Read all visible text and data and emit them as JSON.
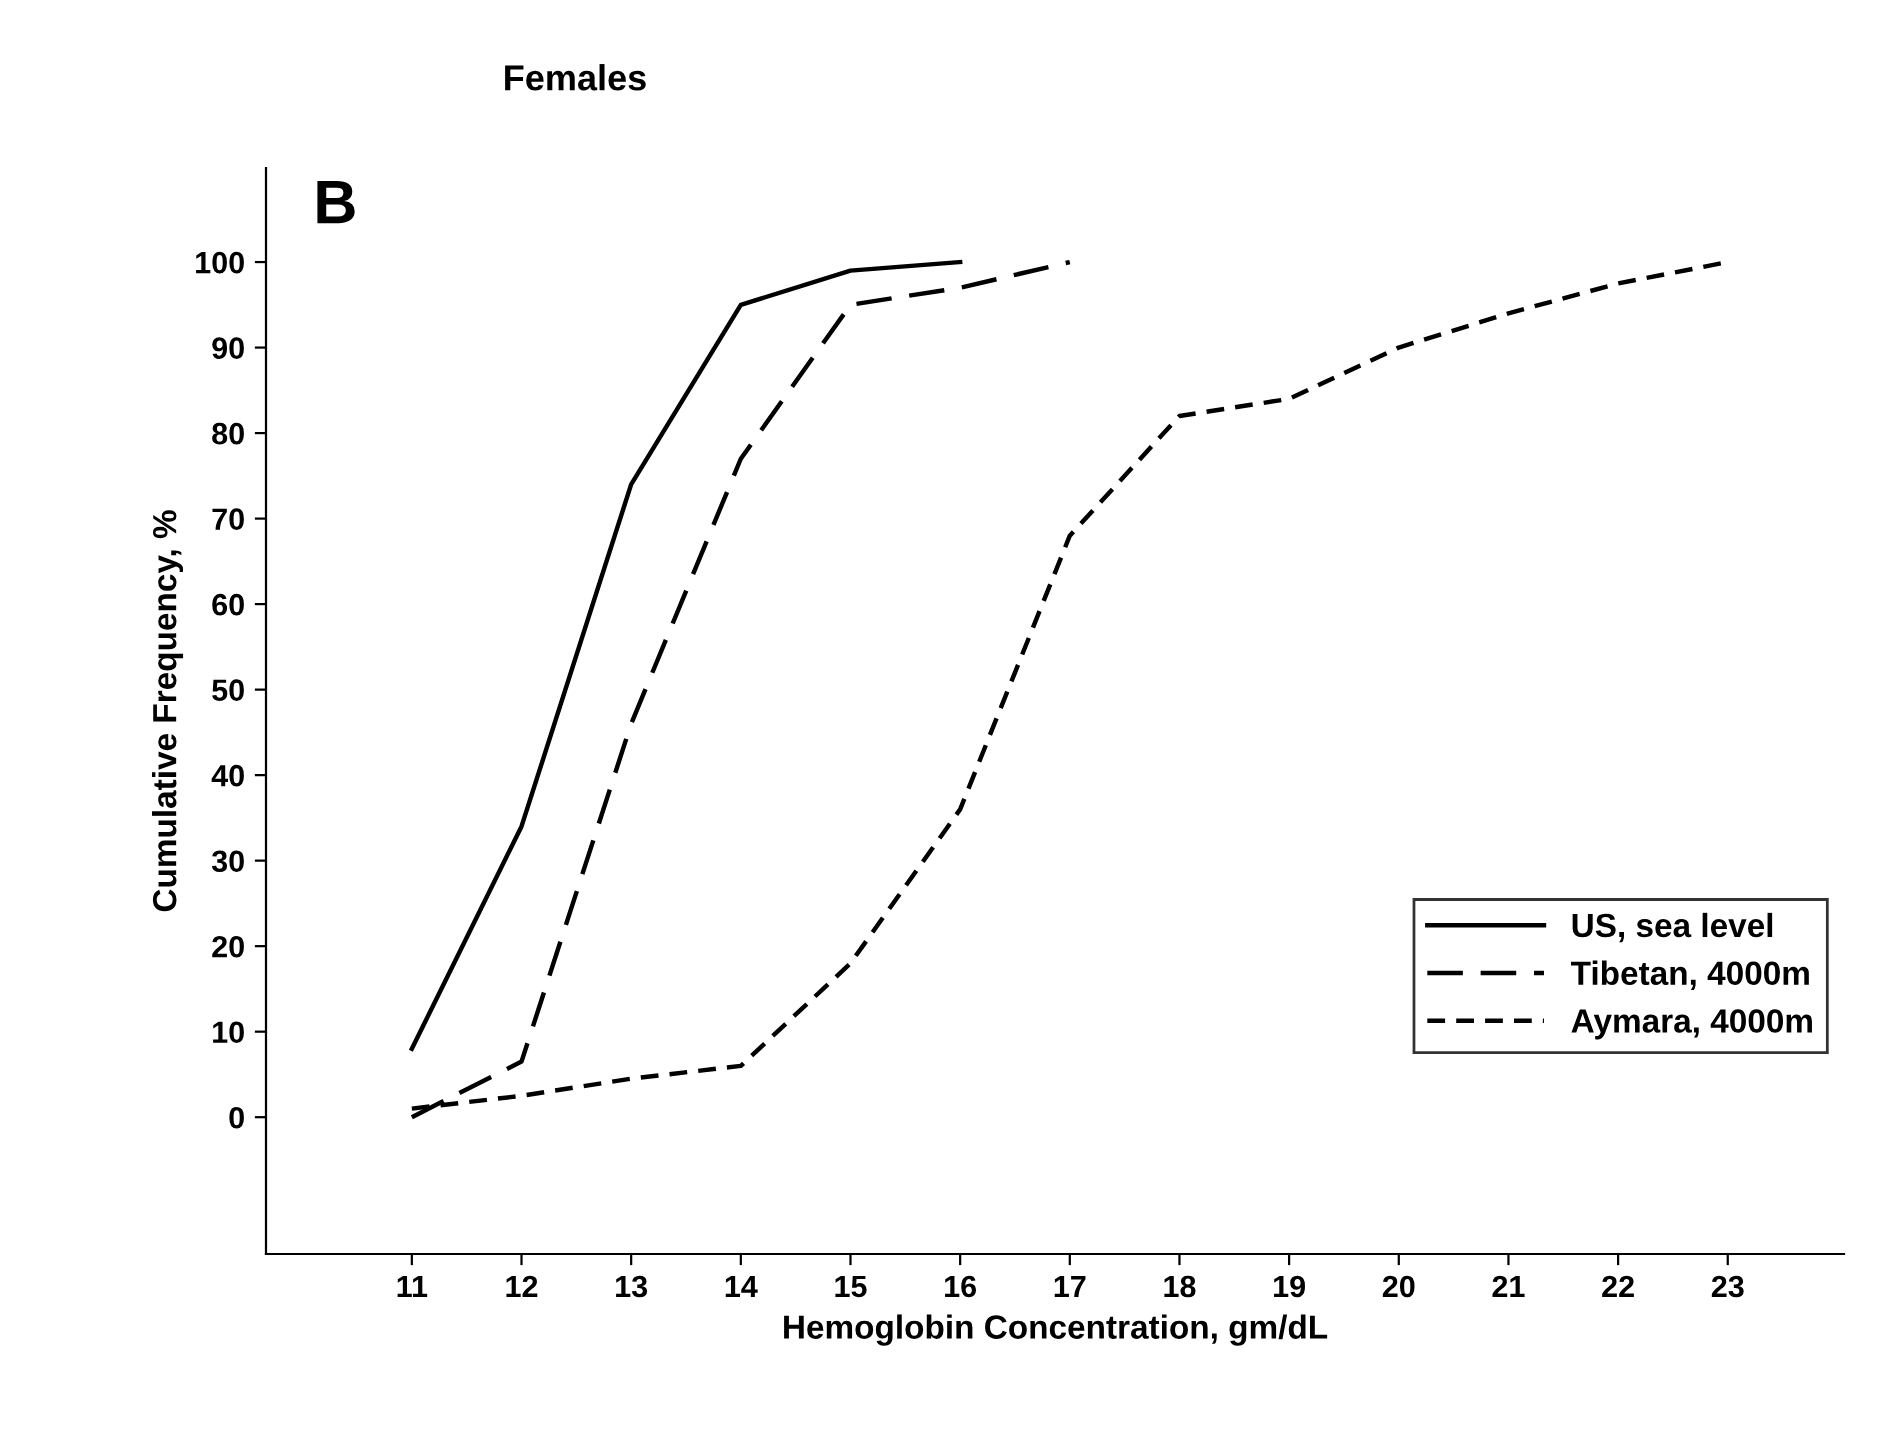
{
  "chart_data": {
    "type": "line",
    "title": "Females",
    "xlabel": "Hemoglobin Concentration, gm/dL",
    "ylabel": "Cumulative Frequency, %",
    "annotations": [
      "B"
    ],
    "series": [
      {
        "name": "US, sea level",
        "color": "#000000",
        "line_style": "solid",
        "x": [
          11,
          12,
          13,
          14,
          15,
          16
        ],
        "values": [
          8,
          34,
          74,
          95,
          99,
          100
        ]
      },
      {
        "name": "Tibetan, 4000m",
        "color": "#000000",
        "line_style": "dashed",
        "x": [
          11,
          12,
          13,
          14,
          15,
          16,
          17
        ],
        "values": [
          0,
          6.5,
          46,
          77,
          95,
          97,
          100
        ]
      },
      {
        "name": "Aymara, 4000m",
        "color": "#000000",
        "line_style": "dotted",
        "x": [
          11,
          12,
          13,
          14,
          15,
          16,
          17,
          18,
          19,
          20,
          21,
          22,
          23
        ],
        "values": [
          1,
          2.5,
          4.5,
          6,
          18,
          36,
          68,
          82,
          84,
          90,
          94,
          97.5,
          100
        ]
      }
    ],
    "xlim": [
      9.67,
      24.06
    ],
    "ylim": [
      -16,
      111
    ],
    "xticks": [
      11,
      12,
      13,
      14,
      15,
      16,
      17,
      18,
      19,
      20,
      21,
      22,
      23
    ],
    "yticks": [
      0,
      10,
      20,
      30,
      40,
      50,
      60,
      70,
      80,
      90,
      100
    ],
    "grid": false,
    "legend": "bottom right",
    "marker": "none"
  }
}
